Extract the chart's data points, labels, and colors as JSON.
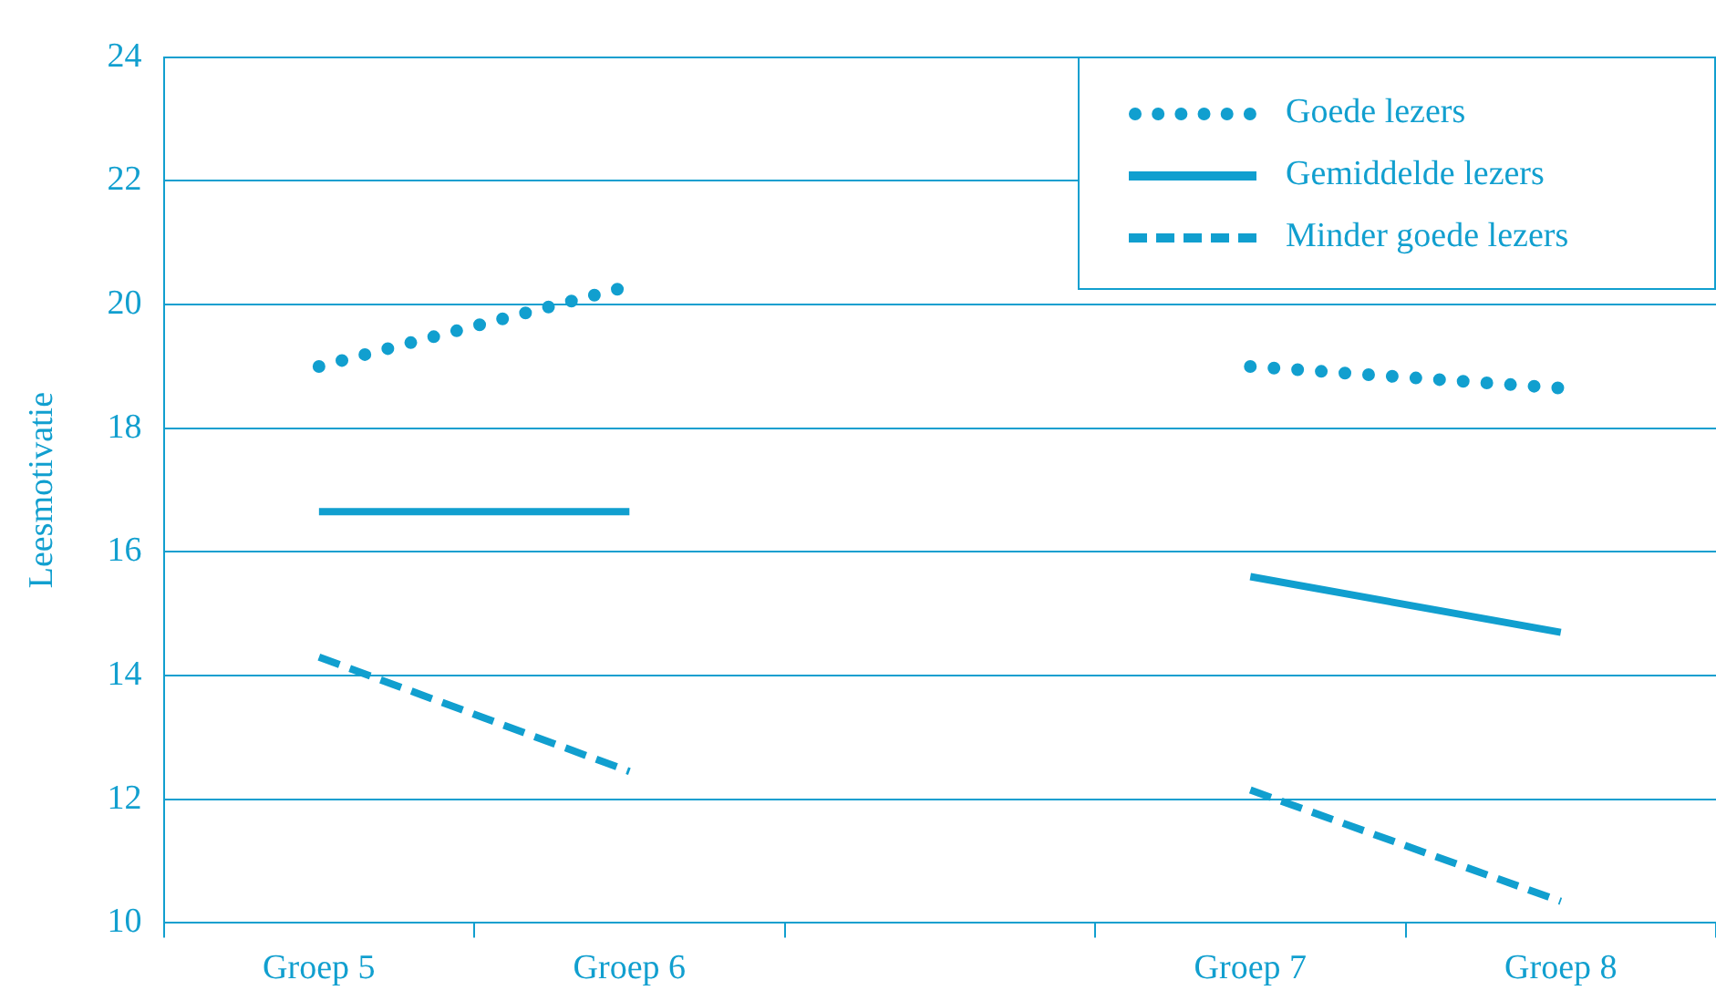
{
  "chart_data": {
    "type": "line",
    "ylabel": "Leesmotivatie",
    "categories": [
      "Groep 5",
      "Groep 6",
      null,
      "Groep 7",
      "Groep 8"
    ],
    "series": [
      {
        "name": "Goede lezers",
        "color": "#119fcf",
        "line_style": "dotted",
        "values": [
          19.0,
          20.3,
          null,
          19.0,
          18.65
        ]
      },
      {
        "name": "Gemiddelde lezers",
        "color": "#119fcf",
        "line_style": "solid",
        "values": [
          16.65,
          16.65,
          null,
          15.6,
          14.7
        ]
      },
      {
        "name": "Minder goede lezers",
        "color": "#119fcf",
        "line_style": "dashed",
        "values": [
          14.3,
          12.45,
          null,
          12.15,
          10.35
        ]
      }
    ],
    "ylim": [
      10,
      24
    ],
    "yticks": [
      10,
      12,
      14,
      16,
      18,
      20,
      22,
      24
    ],
    "grid": "y",
    "legend": "top right",
    "marker": "none"
  }
}
